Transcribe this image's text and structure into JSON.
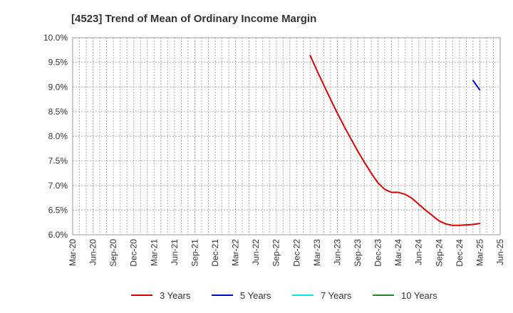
{
  "chart_data": {
    "type": "line",
    "title": "[4523]  Trend of Mean of Ordinary Income Margin",
    "xlabel": "",
    "ylabel": "",
    "x_ticks": [
      "Mar-20",
      "Jun-20",
      "Sep-20",
      "Dec-20",
      "Mar-21",
      "Jun-21",
      "Sep-21",
      "Dec-21",
      "Mar-22",
      "Jun-22",
      "Sep-22",
      "Dec-22",
      "Mar-23",
      "Jun-23",
      "Sep-23",
      "Dec-23",
      "Mar-24",
      "Jun-24",
      "Sep-24",
      "Dec-24",
      "Mar-25",
      "Jun-25"
    ],
    "y_ticks": [
      "6.0%",
      "6.5%",
      "7.0%",
      "7.5%",
      "8.0%",
      "8.5%",
      "9.0%",
      "9.5%",
      "10.0%"
    ],
    "ylim": [
      6.0,
      10.0
    ],
    "grid": true,
    "legend_position": "bottom",
    "series": [
      {
        "name": "3 Years",
        "color": "#dd0000",
        "points": [
          {
            "x": "Feb-23",
            "y": 9.64
          },
          {
            "x": "Mar-23",
            "y": 9.33
          },
          {
            "x": "Apr-23",
            "y": 9.04
          },
          {
            "x": "May-23",
            "y": 8.75
          },
          {
            "x": "Jun-23",
            "y": 8.47
          },
          {
            "x": "Jul-23",
            "y": 8.2
          },
          {
            "x": "Aug-23",
            "y": 7.95
          },
          {
            "x": "Sep-23",
            "y": 7.7
          },
          {
            "x": "Oct-23",
            "y": 7.47
          },
          {
            "x": "Nov-23",
            "y": 7.25
          },
          {
            "x": "Dec-23",
            "y": 7.05
          },
          {
            "x": "Jan-24",
            "y": 6.92
          },
          {
            "x": "Feb-24",
            "y": 6.86
          },
          {
            "x": "Mar-24",
            "y": 6.86
          },
          {
            "x": "Apr-24",
            "y": 6.82
          },
          {
            "x": "May-24",
            "y": 6.74
          },
          {
            "x": "Jun-24",
            "y": 6.62
          },
          {
            "x": "Jul-24",
            "y": 6.5
          },
          {
            "x": "Aug-24",
            "y": 6.39
          },
          {
            "x": "Sep-24",
            "y": 6.28
          },
          {
            "x": "Oct-24",
            "y": 6.22
          },
          {
            "x": "Nov-24",
            "y": 6.19
          },
          {
            "x": "Dec-24",
            "y": 6.19
          },
          {
            "x": "Jan-25",
            "y": 6.2
          },
          {
            "x": "Feb-25",
            "y": 6.21
          },
          {
            "x": "Mar-25",
            "y": 6.23
          }
        ]
      },
      {
        "name": "5 Years",
        "color": "#0000cc",
        "points": [
          {
            "x": "Feb-25",
            "y": 9.13
          },
          {
            "x": "Mar-25",
            "y": 8.94
          }
        ]
      },
      {
        "name": "7 Years",
        "color": "#00e5ee",
        "points": []
      },
      {
        "name": "10 Years",
        "color": "#228b22",
        "points": []
      }
    ]
  }
}
